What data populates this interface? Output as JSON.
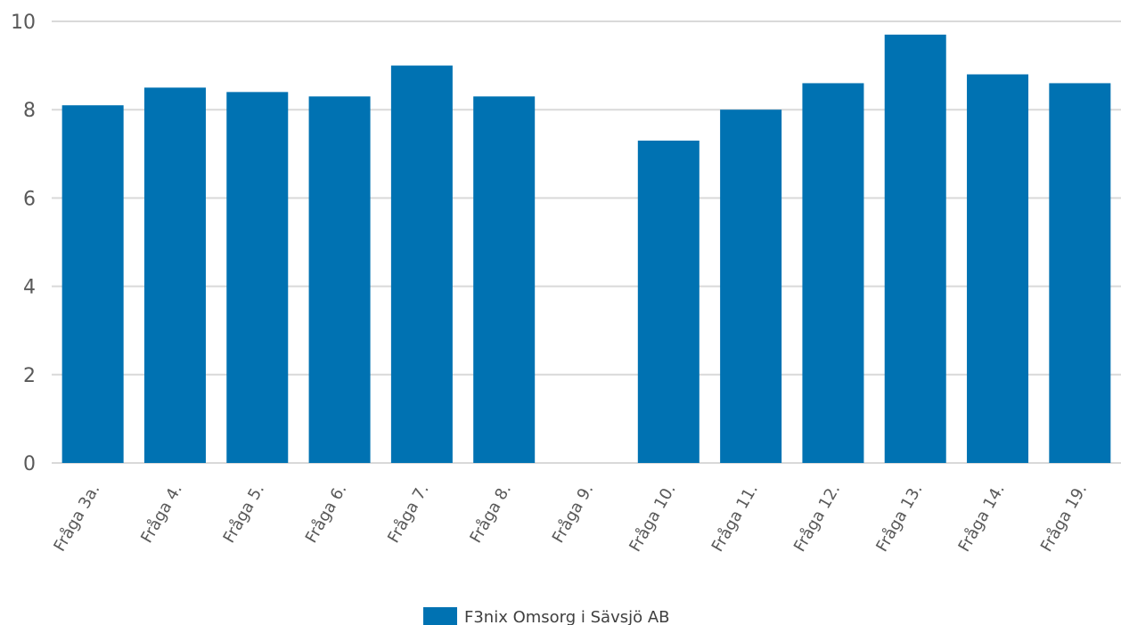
{
  "chart_data": {
    "type": "bar",
    "categories": [
      "Fråga 3a.",
      "Fråga 4.",
      "Fråga 5.",
      "Fråga 6.",
      "Fråga 7.",
      "Fråga 8.",
      "Fråga 9.",
      "Fråga 10.",
      "Fråga 11.",
      "Fråga 12.",
      "Fråga 13.",
      "Fråga 14.",
      "Fråga 19."
    ],
    "series": [
      {
        "name": "F3nix Omsorg i Sävsjö AB",
        "values": [
          8.1,
          8.5,
          8.4,
          8.3,
          9.0,
          8.3,
          null,
          7.3,
          8.0,
          8.6,
          9.7,
          8.8,
          8.6
        ]
      }
    ],
    "yticks": [
      0,
      2,
      4,
      6,
      8,
      10
    ],
    "ylim": [
      0,
      10
    ],
    "grid": true,
    "legend": "bottom-center",
    "bar_color": "#0072b2",
    "grid_color": "#d9d9d9"
  }
}
